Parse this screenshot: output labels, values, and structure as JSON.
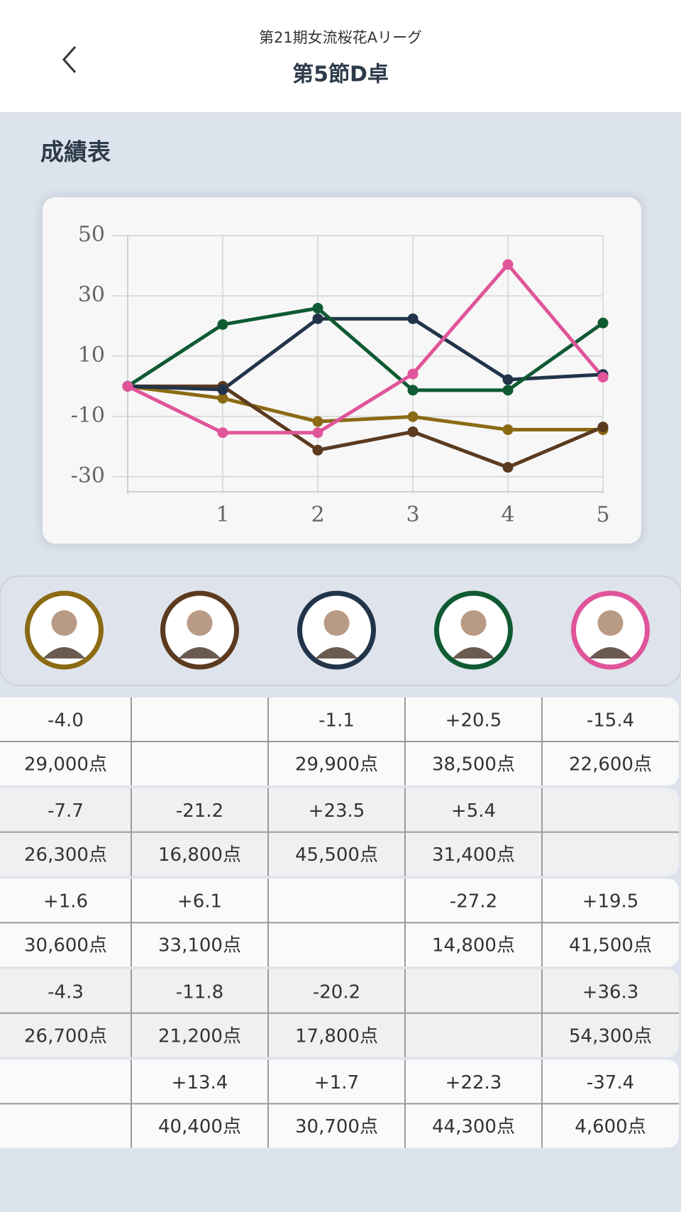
{
  "header": {
    "subtitle": "第21期女流桜花Aリーグ",
    "title": "第5節D卓"
  },
  "section_title": "成績表",
  "chart_data": {
    "type": "line",
    "x": [
      0,
      1,
      2,
      3,
      4,
      5
    ],
    "xlim": [
      0,
      5
    ],
    "xticks": [
      1,
      2,
      3,
      4,
      5
    ],
    "ylim": [
      -35,
      50
    ],
    "yticks": [
      50,
      30,
      10,
      -10,
      -30
    ],
    "grid": true,
    "series": [
      {
        "color": "#8b6a14",
        "values": [
          0,
          -4.0,
          -11.7,
          -10.1,
          -14.4,
          -14.4
        ]
      },
      {
        "color": "#5b3a1f",
        "values": [
          0,
          0,
          -21.2,
          -15.1,
          -26.9,
          -13.5
        ]
      },
      {
        "color": "#22344a",
        "values": [
          0,
          -1.1,
          22.4,
          22.4,
          2.2,
          3.9
        ]
      },
      {
        "color": "#0f5a32",
        "values": [
          0,
          20.5,
          25.9,
          -1.3,
          -1.3,
          21.0
        ]
      },
      {
        "color": "#e0559a",
        "values": [
          0,
          -15.4,
          -15.4,
          4.1,
          40.4,
          3.0
        ]
      }
    ]
  },
  "table": {
    "rows": [
      [
        {
          "score": "-4.0",
          "points": "29,000点"
        },
        null,
        {
          "score": "-1.1",
          "points": "29,900点"
        },
        {
          "score": "+20.5",
          "points": "38,500点"
        },
        {
          "score": "-15.4",
          "points": "22,600点"
        }
      ],
      [
        {
          "score": "-7.7",
          "points": "26,300点"
        },
        {
          "score": "-21.2",
          "points": "16,800点"
        },
        {
          "score": "+23.5",
          "points": "45,500点"
        },
        {
          "score": "+5.4",
          "points": "31,400点"
        },
        null
      ],
      [
        {
          "score": "+1.6",
          "points": "30,600点"
        },
        {
          "score": "+6.1",
          "points": "33,100点"
        },
        null,
        {
          "score": "-27.2",
          "points": "14,800点"
        },
        {
          "score": "+19.5",
          "points": "41,500点"
        }
      ],
      [
        {
          "score": "-4.3",
          "points": "26,700点"
        },
        {
          "score": "-11.8",
          "points": "21,200点"
        },
        {
          "score": "-20.2",
          "points": "17,800点"
        },
        null,
        {
          "score": "+36.3",
          "points": "54,300点"
        }
      ],
      [
        null,
        {
          "score": "+13.4",
          "points": "40,400点"
        },
        {
          "score": "+1.7",
          "points": "30,700点"
        },
        {
          "score": "+22.3",
          "points": "44,300点"
        },
        {
          "score": "-37.4",
          "points": "4,600点"
        }
      ]
    ]
  }
}
